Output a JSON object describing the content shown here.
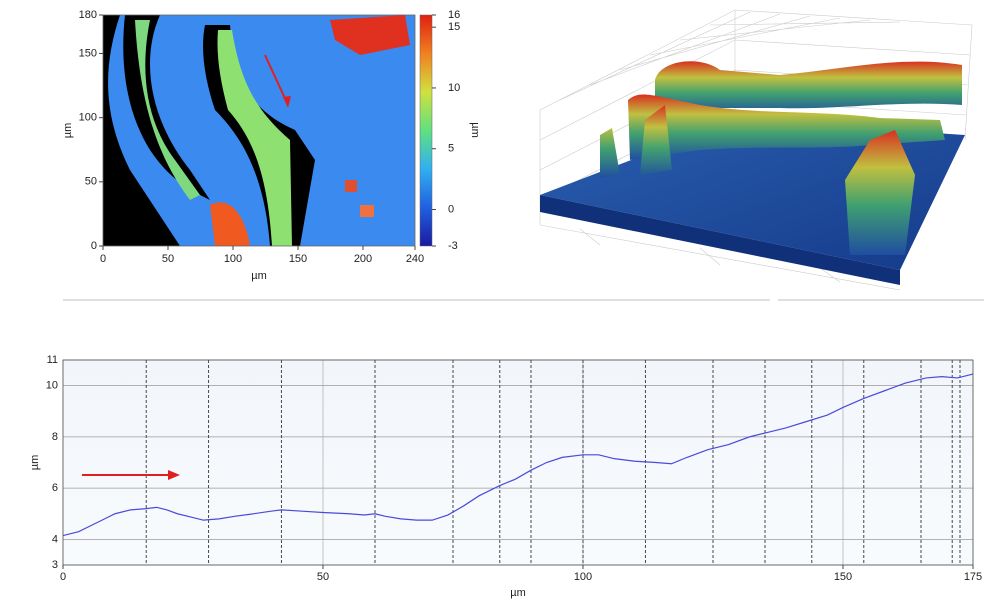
{
  "chart_data": [
    {
      "type": "heatmap",
      "xlabel": "µm",
      "ylabel": "µm",
      "xlim": [
        0,
        240
      ],
      "xticks": [
        0,
        50,
        100,
        150,
        200,
        240
      ],
      "ylim": [
        0,
        180
      ],
      "yticks": [
        0,
        50,
        100,
        150,
        180
      ],
      "colorbar": {
        "label": "µm",
        "lim": [
          -3,
          16
        ],
        "ticks": [
          -3,
          0,
          5,
          10,
          15,
          16
        ],
        "colors": [
          "#1a1aa0",
          "#2060e0",
          "#30b0f0",
          "#60e080",
          "#d0e040",
          "#f08020",
          "#e02010"
        ]
      }
    },
    {
      "type": "line",
      "xlabel": "µm",
      "ylabel": "µm",
      "color": "#4a4adb",
      "xlim": [
        0,
        175
      ],
      "xticks": [
        0,
        50,
        100,
        150,
        175
      ],
      "ylim": [
        3,
        11
      ],
      "yticks": [
        3,
        4,
        6,
        8,
        10,
        11
      ],
      "grid": true,
      "vlines": [
        16,
        28,
        42,
        60,
        75,
        84,
        90,
        100,
        112,
        125,
        135,
        144,
        154,
        165,
        171,
        172.5
      ],
      "x": [
        0,
        3,
        6,
        8,
        10,
        13,
        16,
        18,
        20,
        22,
        25,
        27,
        30,
        33,
        36,
        40,
        42,
        46,
        50,
        55,
        58,
        60,
        62,
        65,
        68,
        71,
        74,
        77,
        80,
        84,
        87,
        90,
        93,
        96,
        100,
        103,
        106,
        110,
        114,
        117,
        120,
        124,
        128,
        132,
        135,
        139,
        143,
        147,
        150,
        154,
        158,
        162,
        166,
        169,
        172,
        175
      ],
      "values": [
        4.15,
        4.3,
        4.6,
        4.8,
        5.0,
        5.15,
        5.2,
        5.25,
        5.15,
        5.0,
        4.85,
        4.75,
        4.8,
        4.9,
        4.98,
        5.1,
        5.15,
        5.1,
        5.05,
        5.0,
        4.95,
        5.0,
        4.9,
        4.8,
        4.75,
        4.75,
        4.95,
        5.3,
        5.7,
        6.1,
        6.35,
        6.7,
        7.0,
        7.2,
        7.3,
        7.3,
        7.15,
        7.05,
        7.0,
        6.95,
        7.2,
        7.5,
        7.7,
        8.0,
        8.15,
        8.35,
        8.6,
        8.85,
        9.15,
        9.5,
        9.8,
        10.1,
        10.3,
        10.35,
        10.3,
        10.45
      ]
    }
  ]
}
